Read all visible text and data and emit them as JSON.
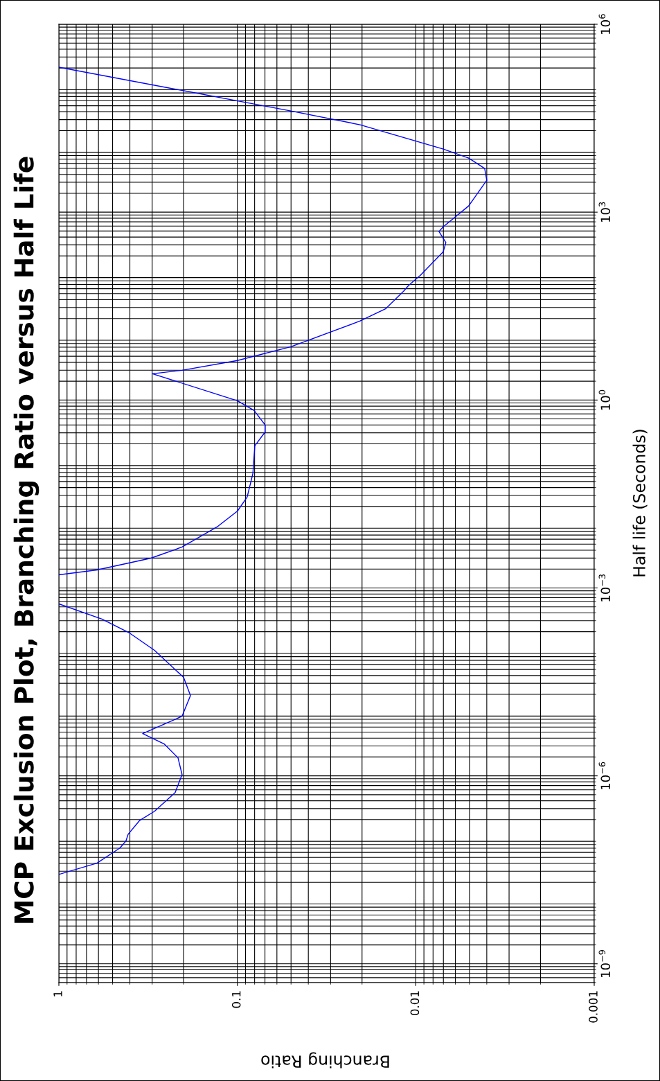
{
  "chart_data": {
    "type": "line",
    "title": "MCP Exclusion Plot, Branching Ratio versus Half Life",
    "xlabel": "Branching Ratio",
    "ylabel": "Half life (Seconds)",
    "x": [
      1,
      0.612,
      0.455,
      0.421,
      0.409,
      0.352,
      0.291,
      0.223,
      0.204,
      0.215,
      0.257,
      0.339,
      0.204,
      0.183,
      0.2,
      0.291,
      0.402,
      0.574,
      1,
      null,
      1,
      0.612,
      0.305,
      0.204,
      0.13,
      0.0998,
      0.0881,
      0.0818,
      0.0798,
      0.0698,
      0.0698,
      0.0805,
      0.0998,
      0.299,
      0.204,
      0.0998,
      0.0501,
      0.0205,
      0.0147,
      0.0117,
      0.011,
      0.00942,
      0.00701,
      0.00678,
      0.00741,
      0.00701,
      0.00505,
      0.004,
      0.00411,
      0.00505,
      0.00701,
      0.0205,
      0.0501,
      0.102,
      1
    ],
    "series": [
      {
        "color": "#0000ff",
        "values": [
          2.67e-08,
          4.03e-08,
          7.05e-08,
          9.1e-08,
          1.17e-07,
          1.95e-07,
          2.72e-07,
          5.42e-07,
          1.05e-06,
          1.94e-06,
          3.23e-06,
          4.73e-06,
          8.95e-06,
          1.92e-05,
          3.73e-05,
          0.000101,
          0.000191,
          0.000318,
          0.000556,
          null,
          0.00162,
          0.00194,
          0.00299,
          0.0045,
          0.00942,
          0.0169,
          0.0282,
          0.067,
          0.186,
          0.31,
          0.399,
          0.682,
          0.975,
          2.63,
          2.99,
          4.28,
          7.11,
          18.3,
          28.9,
          54.7,
          67.0,
          98.4,
          234,
          326,
          490,
          585,
          1259,
          3228,
          4977,
          7295,
          10162,
          24831,
          41305,
          60534,
          206063
        ]
      }
    ],
    "log": "xy",
    "grid": true,
    "xlim": [
      1,
      0.001
    ],
    "ylim": [
      5e-10,
      1000000.0
    ],
    "xticks": [
      {
        "value": 1,
        "label": "1"
      },
      {
        "value": 0.1,
        "label": "0.1"
      },
      {
        "value": 0.01,
        "label": "0.01"
      },
      {
        "value": 0.001,
        "label": "0.001"
      }
    ],
    "yticks": [
      {
        "value": 1e-09,
        "label": "10$^{−9}$"
      },
      {
        "value": 1e-06,
        "label": "10$^{−6}$"
      },
      {
        "value": 0.001,
        "label": "10$^{−3}$"
      },
      {
        "value": 1,
        "label": "10$^{0}$"
      },
      {
        "value": 1000.0,
        "label": "10$^{3}$"
      },
      {
        "value": 1000000.0,
        "label": "10$^{6}$"
      }
    ]
  }
}
